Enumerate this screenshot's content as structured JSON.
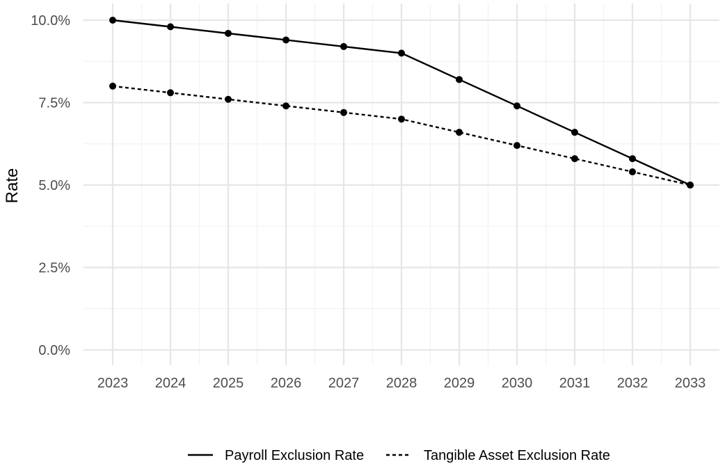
{
  "chart_data": {
    "type": "line",
    "title": "",
    "xlabel": "",
    "ylabel": "Rate",
    "x": [
      2023,
      2024,
      2025,
      2026,
      2027,
      2028,
      2029,
      2030,
      2031,
      2032,
      2033
    ],
    "x_tick_labels": [
      "2023",
      "2024",
      "2025",
      "2026",
      "2027",
      "2028",
      "2029",
      "2030",
      "2031",
      "2032",
      "2033"
    ],
    "ylim": [
      0,
      0.1
    ],
    "y_ticks": [
      0,
      0.025,
      0.05,
      0.075,
      0.1
    ],
    "y_tick_labels": [
      "0.0%",
      "2.5%",
      "5.0%",
      "7.5%",
      "10.0%"
    ],
    "grid": true,
    "legend_position": "bottom",
    "series": [
      {
        "name": "Payroll Exclusion Rate",
        "line_style": "solid",
        "color": "#000000",
        "values": [
          0.1,
          0.098,
          0.096,
          0.094,
          0.092,
          0.09,
          0.082,
          0.074,
          0.066,
          0.058,
          0.05
        ]
      },
      {
        "name": "Tangible Asset Exclusion Rate",
        "line_style": "dashed",
        "color": "#000000",
        "values": [
          0.08,
          0.078,
          0.076,
          0.074,
          0.072,
          0.07,
          0.066,
          0.062,
          0.058,
          0.054,
          0.05
        ]
      }
    ]
  }
}
